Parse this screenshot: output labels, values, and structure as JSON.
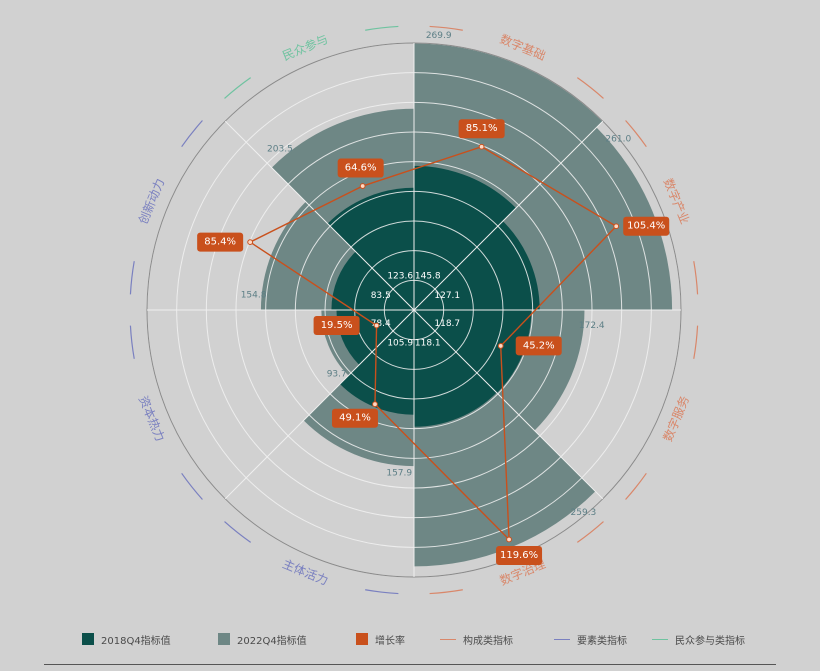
{
  "chart_data": {
    "type": "polar-bar",
    "categories": [
      "数字基础",
      "数字产业",
      "数字服务",
      "数字治理",
      "主体活力",
      "资本热力",
      "创新动力",
      "民众参与"
    ],
    "category_groups": [
      {
        "name": "构成类指标",
        "color": "#d9876a",
        "categories": [
          "数字基础",
          "数字产业",
          "数字服务",
          "数字治理"
        ]
      },
      {
        "name": "要素类指标",
        "color": "#7a80c0",
        "categories": [
          "主体活力",
          "资本热力",
          "创新动力"
        ]
      },
      {
        "name": "民众参与类指标",
        "color": "#6fc3a0",
        "categories": [
          "民众参与"
        ]
      }
    ],
    "series": [
      {
        "name": "2018Q4指标值",
        "color": "#0b4f4a",
        "values": [
          145.8,
          127.1,
          118.7,
          118.1,
          105.9,
          78.4,
          83.5,
          123.6
        ]
      },
      {
        "name": "2022Q4指标值",
        "color": "#6e8785",
        "values": [
          269.9,
          261.0,
          172.4,
          259.3,
          157.9,
          93.7,
          154.8,
          203.5
        ]
      },
      {
        "name": "增长率",
        "color": "#c9501c",
        "values": [
          "85.1%",
          "105.4%",
          "45.2%",
          "119.6%",
          "49.1%",
          "19.5%",
          "85.4%",
          "64.6%"
        ]
      }
    ],
    "legend_position": "bottom",
    "radial_max": 270,
    "grid": true
  },
  "legend": {
    "items": [
      {
        "label": "2018Q4指标值",
        "kind": "box",
        "color": "#0b4f4a"
      },
      {
        "label": "2022Q4指标值",
        "kind": "box",
        "color": "#6e8785"
      },
      {
        "label": "增长率",
        "kind": "box",
        "color": "#c9501c"
      },
      {
        "label": "构成类指标",
        "kind": "line",
        "color": "#d9876a"
      },
      {
        "label": "要素类指标",
        "kind": "line",
        "color": "#7a80c0"
      },
      {
        "label": "民众参与类指标",
        "kind": "line",
        "color": "#6fc3a0"
      }
    ]
  }
}
